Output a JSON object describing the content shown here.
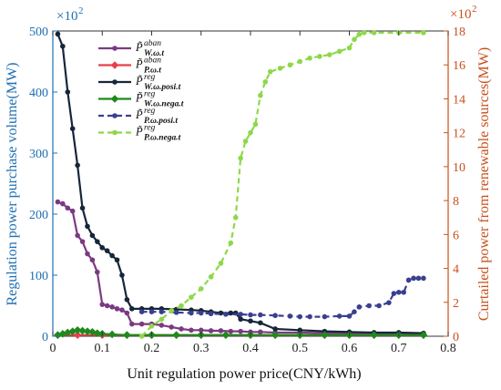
{
  "chart_data": {
    "type": "line",
    "xlabel": "Unit regulation power price(CNY/kWh)",
    "ylabel_left": "Regulation power purchase volume(MW)",
    "ylabel_right": "Curtailed power from renewable sources(MW)",
    "xlim": [
      0,
      0.8
    ],
    "ylim_left": [
      0,
      500
    ],
    "ylim_right": [
      0,
      18
    ],
    "x_ticks": [
      "0",
      "0.1",
      "0.2",
      "0.3",
      "0.4",
      "0.5",
      "0.6",
      "0.7",
      "0.8"
    ],
    "y_left_ticks": [
      "0",
      "100",
      "200",
      "300",
      "400",
      "500"
    ],
    "y_right_ticks": [
      "0",
      "2",
      "4",
      "6",
      "8",
      "10",
      "12",
      "14",
      "16",
      "18"
    ],
    "y_left_multiplier": "×10",
    "y_left_multiplier_exp": "2",
    "y_right_multiplier": "×10",
    "y_right_multiplier_exp": "2",
    "legend_placement": "top-left",
    "grid": false,
    "colors": {
      "left_axis": "#1f6fb2",
      "right_axis": "#c8501c"
    },
    "series": [
      {
        "name": "P̃aban W.ω.t",
        "legend_main": "P̃",
        "legend_sup": "aban",
        "legend_sub": "W.ω.t",
        "axis": "left",
        "color": "#7a3a82",
        "dash": false,
        "marker": "circle",
        "x": [
          0.01,
          0.02,
          0.03,
          0.04,
          0.05,
          0.06,
          0.07,
          0.08,
          0.09,
          0.1,
          0.11,
          0.12,
          0.13,
          0.14,
          0.15,
          0.16,
          0.18,
          0.2,
          0.22,
          0.24,
          0.26,
          0.28,
          0.3,
          0.32,
          0.34,
          0.36,
          0.38,
          0.4,
          0.42,
          0.45,
          0.5,
          0.55,
          0.6,
          0.65,
          0.7,
          0.75
        ],
        "values": [
          220,
          217,
          210,
          205,
          165,
          155,
          135,
          125,
          105,
          52,
          50,
          48,
          45,
          43,
          38,
          20,
          20,
          20,
          18,
          15,
          12,
          10,
          10,
          9,
          9,
          8,
          8,
          7,
          7,
          6,
          6,
          5,
          5,
          5,
          4,
          4
        ]
      },
      {
        "name": "P̃aban P.ω.t",
        "legend_main": "P̃",
        "legend_sup": "aban",
        "legend_sub": "P.ω.t",
        "axis": "left",
        "color": "#e8404c",
        "dash": false,
        "marker": "diamond",
        "x": [
          0.01,
          0.05,
          0.1,
          0.15,
          0.2,
          0.25,
          0.3,
          0.35,
          0.4,
          0.45,
          0.5,
          0.55,
          0.6,
          0.65,
          0.7,
          0.75
        ],
        "values": [
          2,
          2,
          2,
          2,
          2,
          2,
          2,
          2,
          2,
          2,
          2,
          2,
          2,
          2,
          2,
          2
        ]
      },
      {
        "name": "P̃reg W.ω.posi.t",
        "legend_main": "P̃",
        "legend_sup": "reg",
        "legend_sub": "W.ω.posi.t",
        "axis": "left",
        "color": "#17263a",
        "dash": false,
        "marker": "circle",
        "x": [
          0.01,
          0.02,
          0.03,
          0.04,
          0.05,
          0.06,
          0.07,
          0.08,
          0.09,
          0.1,
          0.11,
          0.12,
          0.13,
          0.14,
          0.15,
          0.16,
          0.18,
          0.2,
          0.22,
          0.25,
          0.28,
          0.3,
          0.32,
          0.34,
          0.36,
          0.37,
          0.38,
          0.4,
          0.42,
          0.45,
          0.5,
          0.55,
          0.6,
          0.65,
          0.7,
          0.75
        ],
        "values": [
          495,
          475,
          400,
          340,
          280,
          210,
          180,
          165,
          155,
          145,
          140,
          132,
          125,
          100,
          60,
          45,
          45,
          45,
          45,
          44,
          43,
          42,
          40,
          38,
          38,
          38,
          28,
          25,
          22,
          12,
          10,
          8,
          7,
          6,
          6,
          5
        ]
      },
      {
        "name": "P̃reg W.ω.nega.t",
        "legend_main": "P̃",
        "legend_sup": "reg",
        "legend_sub": "W.ω.nega.t",
        "axis": "left",
        "color": "#1e8a1e",
        "dash": false,
        "marker": "diamond",
        "x": [
          0.01,
          0.02,
          0.03,
          0.04,
          0.05,
          0.06,
          0.07,
          0.08,
          0.09,
          0.1,
          0.12,
          0.15,
          0.2,
          0.25,
          0.3,
          0.35,
          0.4,
          0.45,
          0.5,
          0.55,
          0.6,
          0.65,
          0.7,
          0.75
        ],
        "values": [
          2,
          4,
          6,
          8,
          10,
          9,
          8,
          7,
          5,
          4,
          3,
          2,
          2,
          2,
          2,
          2,
          2,
          2,
          2,
          2,
          2,
          2,
          2,
          2
        ]
      },
      {
        "name": "P̃reg P.ω.posi.t",
        "legend_main": "P̃",
        "legend_sup": "reg",
        "legend_sub": "P.ω.posi.t",
        "axis": "left",
        "color": "#3a3f8f",
        "dash": true,
        "marker": "circle",
        "x": [
          0.18,
          0.2,
          0.22,
          0.25,
          0.28,
          0.3,
          0.32,
          0.35,
          0.38,
          0.4,
          0.42,
          0.45,
          0.48,
          0.5,
          0.52,
          0.55,
          0.58,
          0.6,
          0.61,
          0.62,
          0.64,
          0.66,
          0.68,
          0.69,
          0.7,
          0.71,
          0.72,
          0.73,
          0.74,
          0.75
        ],
        "values": [
          40,
          40,
          40,
          39,
          38,
          38,
          37,
          36,
          36,
          35,
          35,
          34,
          33,
          32,
          32,
          32,
          33,
          33,
          40,
          48,
          50,
          50,
          55,
          70,
          72,
          72,
          92,
          95,
          95,
          95
        ]
      },
      {
        "name": "P̃reg P.ω.nega.t",
        "legend_main": "P̃",
        "legend_sup": "reg",
        "legend_sub": "P.ω.nega.t",
        "axis": "right",
        "color": "#8ed84a",
        "dash": true,
        "marker": "circle",
        "x": [
          0.18,
          0.2,
          0.22,
          0.24,
          0.26,
          0.28,
          0.3,
          0.32,
          0.34,
          0.36,
          0.37,
          0.38,
          0.39,
          0.4,
          0.41,
          0.42,
          0.43,
          0.44,
          0.46,
          0.48,
          0.5,
          0.52,
          0.54,
          0.56,
          0.58,
          0.6,
          0.61,
          0.62,
          0.63,
          0.65,
          0.7,
          0.75
        ],
        "values": [
          0.0,
          0.6,
          1.0,
          1.5,
          1.8,
          2.3,
          2.8,
          3.5,
          4.3,
          5.5,
          7.0,
          10.5,
          11.5,
          12.0,
          12.5,
          14.2,
          15.0,
          15.6,
          15.8,
          16.0,
          16.2,
          16.4,
          16.5,
          16.6,
          16.8,
          17.0,
          17.5,
          17.8,
          17.9,
          17.9,
          17.9,
          17.9
        ]
      }
    ]
  }
}
